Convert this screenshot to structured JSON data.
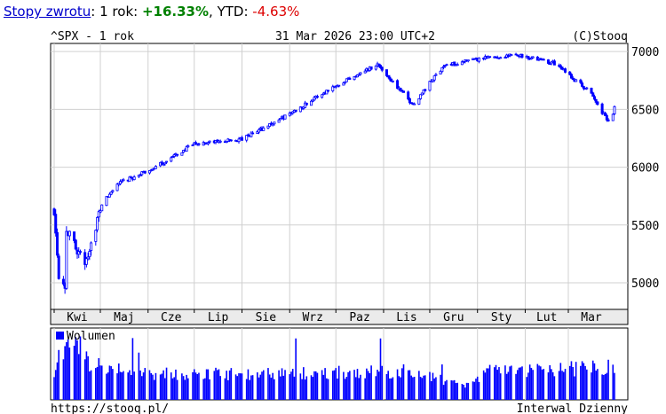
{
  "header": {
    "link_label": "Stopy zwrotu",
    "period_label": "1 rok:",
    "period_return": "+16.33%",
    "ytd_label": "YTD:",
    "ytd_return": "-4.63%"
  },
  "chart_data": {
    "type": "candlestick",
    "symbol_title": "^SPX - 1 rok",
    "timestamp": "31 Mar 2026 23:00 UTC+2",
    "copyright": "(C)Stooq",
    "footer_url": "https://stooq.pl/",
    "footer_interval": "Interwal Dzienny",
    "volume_legend": "Wolumen",
    "ylim": [
      4770,
      7070
    ],
    "y_ticks": [
      5000,
      5500,
      6000,
      6500,
      7000
    ],
    "x_tick_labels": [
      "Kwi",
      "Maj",
      "Cze",
      "Lip",
      "Sie",
      "Wrz",
      "Paz",
      "Lis",
      "Gru",
      "Sty",
      "Lut",
      "Mar"
    ],
    "grid": true,
    "series_color": "#0000ff",
    "close_keypoints": [
      {
        "date": "2025-04-01",
        "close": 5630
      },
      {
        "date": "2025-04-04",
        "close": 5080
      },
      {
        "date": "2025-04-08",
        "close": 4980
      },
      {
        "date": "2025-04-09",
        "close": 5460
      },
      {
        "date": "2025-04-21",
        "close": 5160
      },
      {
        "date": "2025-05-02",
        "close": 5680
      },
      {
        "date": "2025-05-12",
        "close": 5850
      },
      {
        "date": "2025-06-06",
        "close": 6000
      },
      {
        "date": "2025-07-01",
        "close": 6200
      },
      {
        "date": "2025-08-01",
        "close": 6240
      },
      {
        "date": "2025-09-01",
        "close": 6460
      },
      {
        "date": "2025-10-01",
        "close": 6710
      },
      {
        "date": "2025-10-28",
        "close": 6890
      },
      {
        "date": "2025-11-20",
        "close": 6540
      },
      {
        "date": "2025-12-10",
        "close": 6880
      },
      {
        "date": "2026-01-10",
        "close": 6950
      },
      {
        "date": "2026-01-28",
        "close": 6970
      },
      {
        "date": "2026-02-20",
        "close": 6900
      },
      {
        "date": "2026-03-15",
        "close": 6650
      },
      {
        "date": "2026-03-28",
        "close": 6370
      },
      {
        "date": "2026-03-31",
        "close": 6520
      }
    ],
    "volume_keypoints": [
      {
        "date": "2025-04-01",
        "level": 0.45
      },
      {
        "date": "2025-04-09",
        "level": 0.95
      },
      {
        "date": "2025-04-25",
        "level": 0.55
      },
      {
        "date": "2025-06-01",
        "level": 0.4
      },
      {
        "date": "2025-09-01",
        "level": 0.4
      },
      {
        "date": "2025-11-20",
        "level": 0.45
      },
      {
        "date": "2025-12-24",
        "level": 0.2
      },
      {
        "date": "2026-01-10",
        "level": 0.45
      },
      {
        "date": "2026-03-31",
        "level": 0.5
      }
    ]
  }
}
